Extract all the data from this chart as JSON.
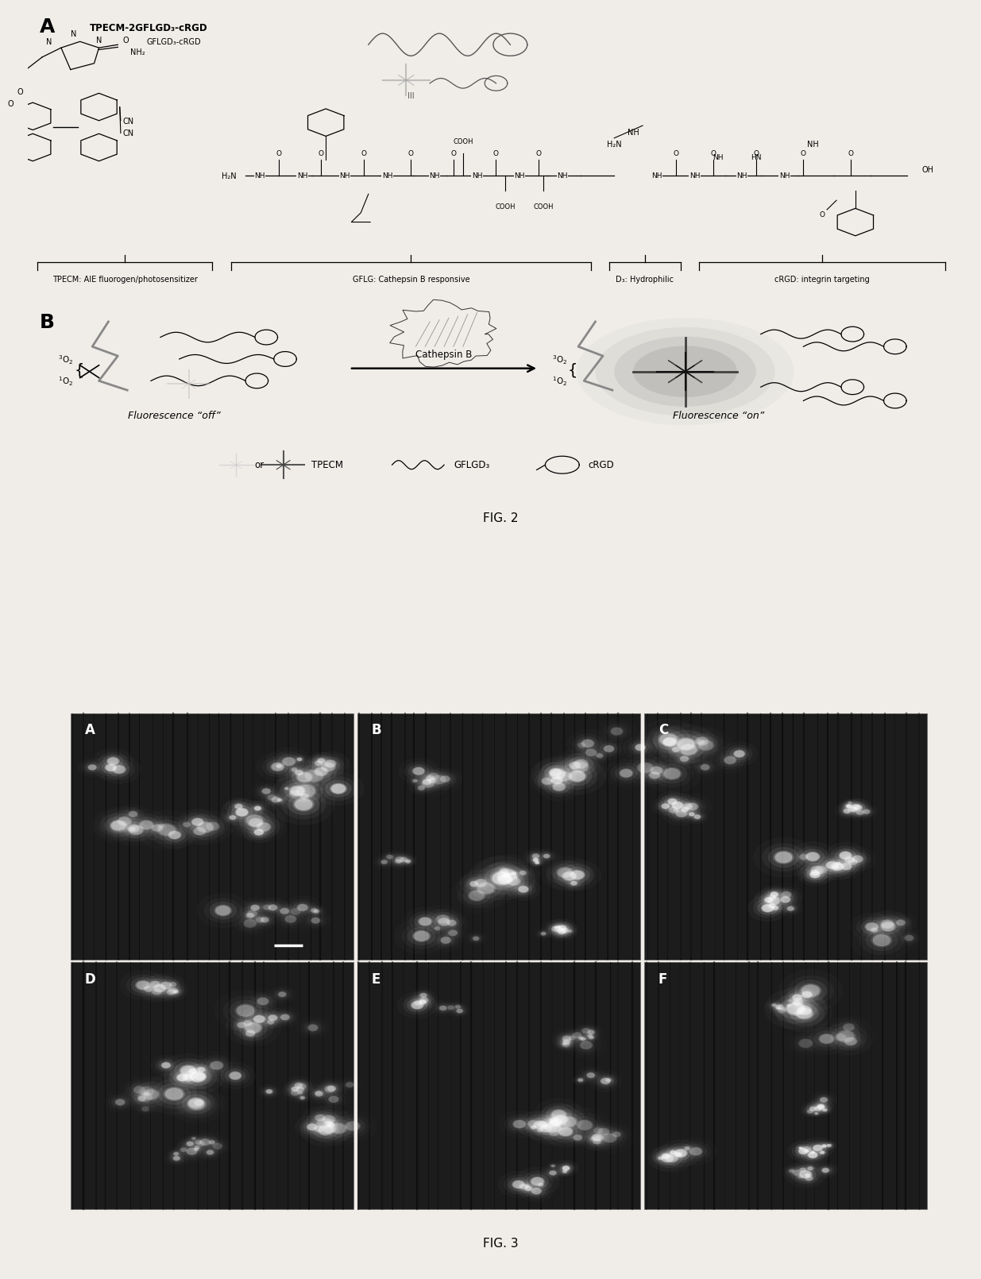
{
  "fig2_label": "FIG. 2",
  "fig3_label": "FIG. 3",
  "panel_A_label": "A",
  "panel_B_label": "B",
  "panel_title_A": "TPECM-2GFLGD₃-cRGD",
  "section_labels": [
    "TPECM: AIE fluorogen/photosensitizer",
    "GFLG: Cathepsin B responsive",
    "D₃: Hydrophilic",
    "cRGD: integrin targeting"
  ],
  "fluorescence_off": "Fluorescence “off”",
  "fluorescence_on": "Fluorescence “on”",
  "cathepsin_b": "Cathepsin B",
  "grid_labels_top": [
    "A",
    "B",
    "C"
  ],
  "grid_labels_bottom": [
    "D",
    "E",
    "F"
  ],
  "bg_color": "#f0ede8",
  "dark_panel_color": "#111111",
  "text_color": "#000000",
  "white_color": "#ffffff",
  "gray_color": "#888888"
}
